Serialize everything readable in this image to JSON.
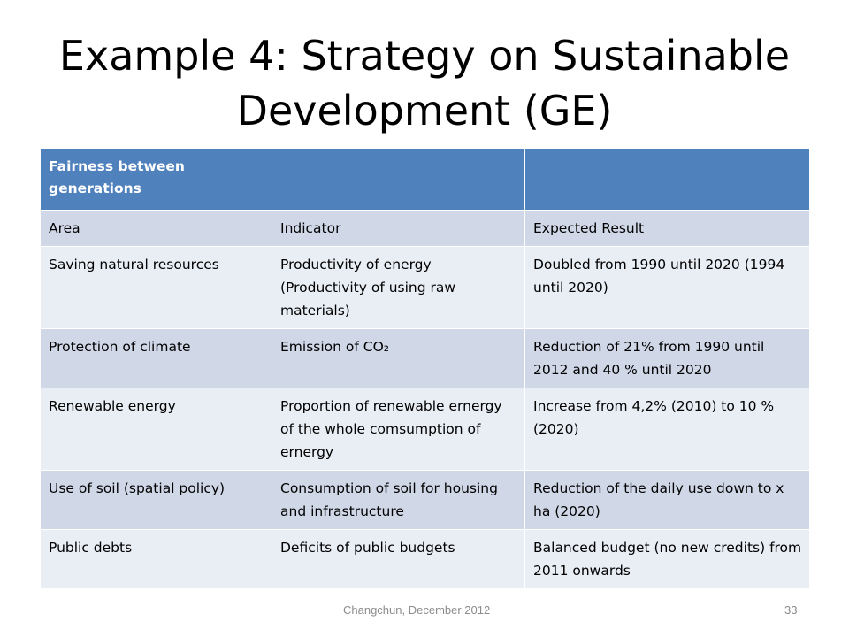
{
  "slide": {
    "title_line1": "Example 4: Strategy on Sustainable",
    "title_line2": "Development (GE)",
    "footer": "Changchun, December 2012",
    "number": "33"
  },
  "table": {
    "header": [
      "Fairness between generations",
      "",
      ""
    ],
    "columns": [
      "Area",
      "Indicator",
      "Expected Result"
    ],
    "rows": [
      [
        "Saving natural resources",
        "Productivity of energy (Productivity of  using raw materials)",
        "Doubled from 1990 until 2020 (1994 until 2020)"
      ],
      [
        "Protection of climate",
        "Emission of CO₂",
        "Reduction of 21% from 1990 until 2012 and 40 % until 2020"
      ],
      [
        "Renewable energy",
        "Proportion of renewable ernergy of the whole comsumption of ernergy",
        "Increase from 4,2% (2010)  to 10 % (2020)"
      ],
      [
        "Use of soil (spatial policy)",
        "Consumption of soil for housing and infrastructure",
        "Reduction of the daily use down to x ha (2020)"
      ],
      [
        "Public debts",
        "Deficits of public budgets",
        "Balanced  budget (no new credits) from 2011 onwards"
      ]
    ]
  }
}
